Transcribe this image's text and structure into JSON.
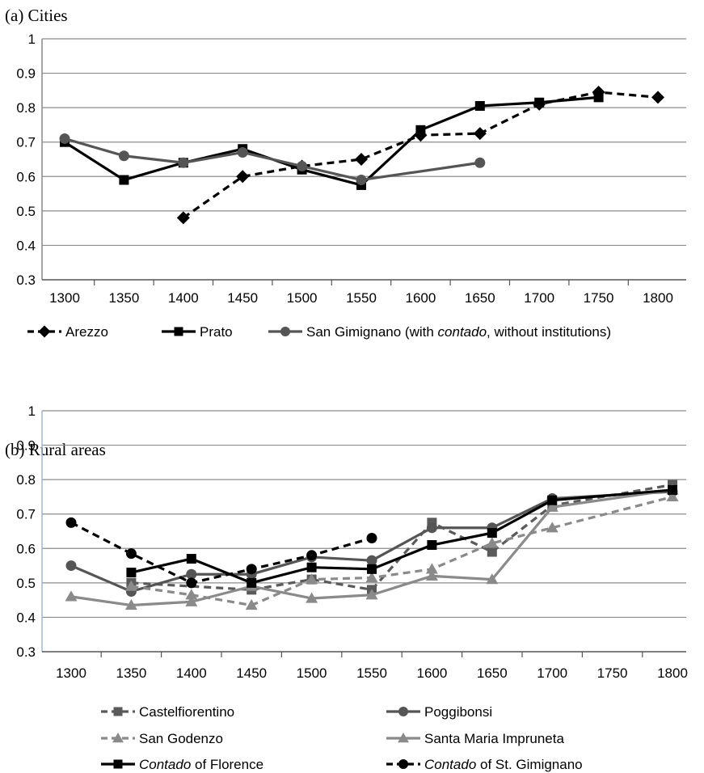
{
  "chart_data": [
    {
      "type": "line",
      "title": "(a) Cities",
      "x": [
        "1300",
        "1350",
        "1400",
        "1450",
        "1500",
        "1550",
        "1600",
        "1650",
        "1700",
        "1750",
        "1800"
      ],
      "ylim": [
        0.3,
        1
      ],
      "yticks": [
        "0.3",
        "0.4",
        "0.5",
        "0.6",
        "0.7",
        "0.8",
        "0.9",
        "1"
      ],
      "grid": true,
      "legend_position": "bottom",
      "series": [
        {
          "name": "Arezzo",
          "color": "#000000",
          "dash": "dashed",
          "marker": "diamond",
          "values": [
            null,
            null,
            0.48,
            0.6,
            0.63,
            0.65,
            0.72,
            0.725,
            0.81,
            0.845,
            0.83
          ]
        },
        {
          "name": "Prato",
          "color": "#000000",
          "dash": "solid",
          "marker": "square",
          "values": [
            0.7,
            0.59,
            0.64,
            0.68,
            0.62,
            0.575,
            0.735,
            0.805,
            0.815,
            0.83,
            null
          ]
        },
        {
          "name": "San Gimignano (with contado, without institutions)",
          "legend_parts": [
            {
              "text": "San Gimignano (with ",
              "italic": false
            },
            {
              "text": "contado",
              "italic": true
            },
            {
              "text": ", without institutions)",
              "italic": false
            }
          ],
          "color": "#555555",
          "dash": "solid",
          "marker": "circle",
          "values": [
            0.71,
            0.66,
            0.64,
            0.67,
            0.63,
            0.59,
            null,
            0.64,
            null,
            null,
            null
          ]
        }
      ]
    },
    {
      "type": "line",
      "title": "(b) Rural areas",
      "x": [
        "1300",
        "1350",
        "1400",
        "1450",
        "1500",
        "1550",
        "1600",
        "1650",
        "1700",
        "1750",
        "1800"
      ],
      "ylim": [
        0.3,
        1
      ],
      "yticks": [
        "0.3",
        "0.4",
        "0.5",
        "0.6",
        "0.7",
        "0.8",
        "0.9",
        "1"
      ],
      "grid": true,
      "legend_position": "bottom",
      "series": [
        {
          "name": "Castelfiorentino",
          "color": "#5a5a5a",
          "dash": "dashed",
          "marker": "square",
          "values": [
            null,
            0.5,
            null,
            0.48,
            0.51,
            0.48,
            0.675,
            0.59,
            0.725,
            null,
            0.785
          ]
        },
        {
          "name": "Poggibonsi",
          "color": "#555555",
          "dash": "solid",
          "marker": "circle",
          "values": [
            0.55,
            0.475,
            0.525,
            0.525,
            0.575,
            0.565,
            0.66,
            0.66,
            0.745,
            null,
            0.765
          ]
        },
        {
          "name": "San Godenzo",
          "color": "#8a8a8a",
          "dash": "dashed",
          "marker": "triangle",
          "values": [
            null,
            0.49,
            0.465,
            0.435,
            0.51,
            0.515,
            0.54,
            0.615,
            0.66,
            null,
            0.75
          ]
        },
        {
          "name": "Santa Maria Impruneta",
          "color": "#8a8a8a",
          "dash": "solid",
          "marker": "triangle",
          "values": [
            0.46,
            0.435,
            0.445,
            0.49,
            0.455,
            0.465,
            0.52,
            0.51,
            0.72,
            null,
            0.77
          ]
        },
        {
          "name": "Contado of Florence",
          "legend_parts": [
            {
              "text": "Contado",
              "italic": true
            },
            {
              "text": " of Florence",
              "italic": false
            }
          ],
          "color": "#000000",
          "dash": "solid",
          "marker": "square",
          "values": [
            null,
            0.53,
            0.57,
            0.5,
            0.545,
            0.54,
            0.61,
            0.645,
            0.74,
            null,
            0.77
          ]
        },
        {
          "name": "Contado of St. Gimignano",
          "legend_parts": [
            {
              "text": "Contado",
              "italic": true
            },
            {
              "text": " of St. Gimignano",
              "italic": false
            }
          ],
          "color": "#000000",
          "dash": "dashed",
          "marker": "circle",
          "values": [
            0.675,
            0.585,
            0.5,
            0.54,
            0.58,
            0.63,
            null,
            null,
            null,
            null,
            null
          ]
        }
      ]
    }
  ]
}
